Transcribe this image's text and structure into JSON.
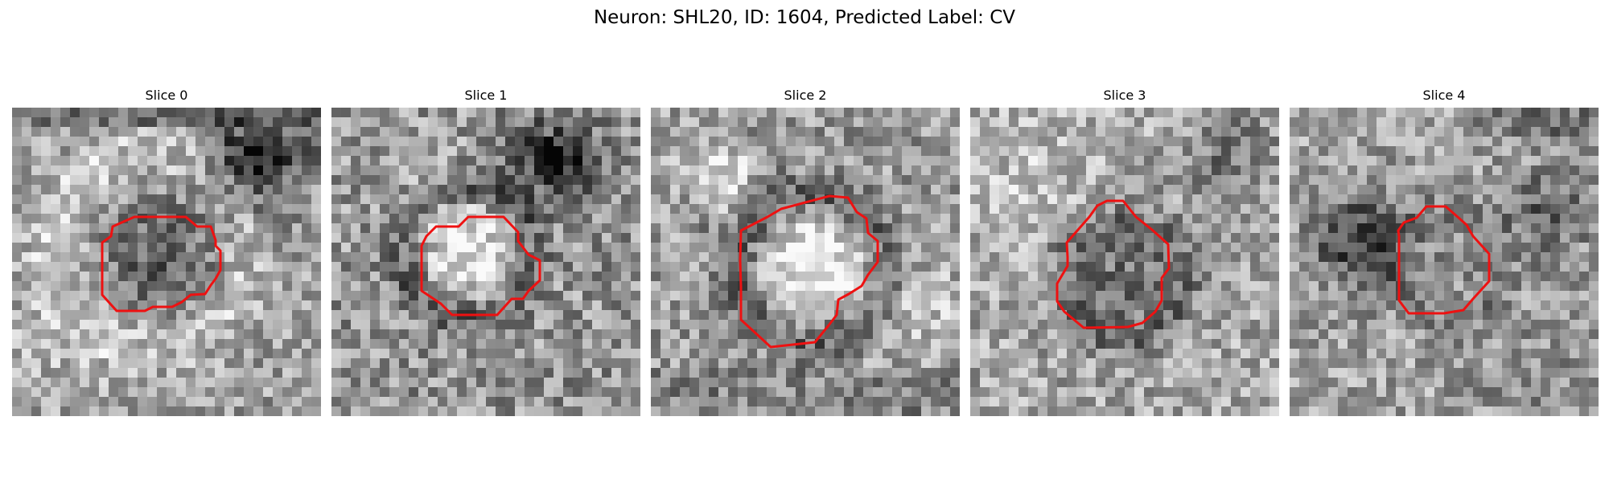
{
  "figure": {
    "title": "Neuron: SHL20, ID: 1604, Predicted Label: CV"
  },
  "panels": [
    {
      "title": "Slice 0",
      "contour_color": "#ee1111",
      "description": "grayscale EM patch; red contour encloses a darker round region"
    },
    {
      "title": "Slice 1",
      "contour_color": "#ee1111",
      "description": "grayscale EM patch; red contour encloses a bright round region ringed by dark tissue"
    },
    {
      "title": "Slice 2",
      "contour_color": "#ee1111",
      "description": "grayscale EM patch; red contour encloses a larger bright round region"
    },
    {
      "title": "Slice 3",
      "contour_color": "#ee1111",
      "description": "grayscale EM patch; red contour encloses a mid-gray round region with darker rim"
    },
    {
      "title": "Slice 4",
      "contour_color": "#ee1111",
      "description": "grayscale EM patch; red contour encloses a small mid-gray octagonal region"
    }
  ]
}
